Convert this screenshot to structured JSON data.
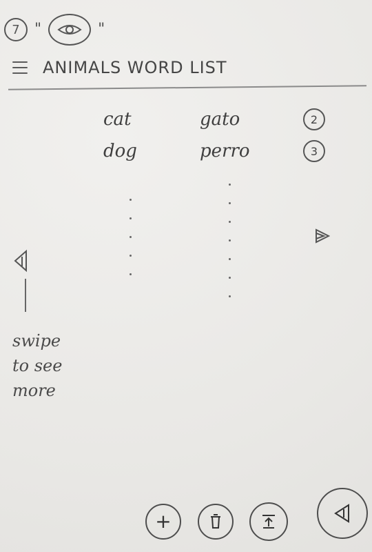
{
  "annotation": {
    "step_number": "7",
    "open_quote": "\"",
    "close_quote": "\"",
    "icon": "eye-icon"
  },
  "header": {
    "menu_icon": "menu-icon",
    "title": "ANIMALS WORD LIST"
  },
  "word_list": [
    {
      "word": "cat",
      "translation": "gato",
      "count": "2"
    },
    {
      "word": "dog",
      "translation": "perro",
      "count": "3"
    }
  ],
  "swipe_hint": {
    "line_1": "swipe",
    "line_2": "to see",
    "line_3": "more",
    "icon": "arrow-left-icon"
  },
  "side_controls": {
    "right_icon": "play-right-icon"
  },
  "bottom_actions": {
    "add": "+",
    "delete_icon": "trash-icon",
    "export_icon": "upload-icon",
    "play_icon": "play-left-icon"
  }
}
